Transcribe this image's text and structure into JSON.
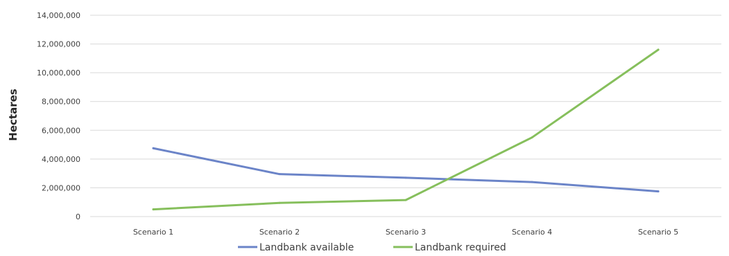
{
  "chart_data": {
    "type": "line",
    "title": "",
    "xlabel": "",
    "ylabel": "Hectares",
    "categories": [
      "Scenario 1",
      "Scenario 2",
      "Scenario 3",
      "Scenario 4",
      "Scenario 5"
    ],
    "series": [
      {
        "name": "Landbank available",
        "color": "#6b84c8",
        "values": [
          4750000,
          2950000,
          2700000,
          2400000,
          1750000
        ]
      },
      {
        "name": "Landbank required",
        "color": "#86bf5c",
        "values": [
          500000,
          950000,
          1150000,
          5500000,
          11600000
        ]
      }
    ],
    "ylim": [
      0,
      14000000
    ],
    "yticks": [
      0,
      2000000,
      4000000,
      6000000,
      8000000,
      10000000,
      12000000,
      14000000
    ],
    "ytick_labels": [
      "0",
      "2,000,000",
      "4,000,000",
      "6,000,000",
      "8,000,000",
      "10,000,000",
      "12,000,000",
      "14,000,000"
    ],
    "grid": true,
    "gridline_color": "#d9d9d9",
    "legend_position": "bottom"
  }
}
